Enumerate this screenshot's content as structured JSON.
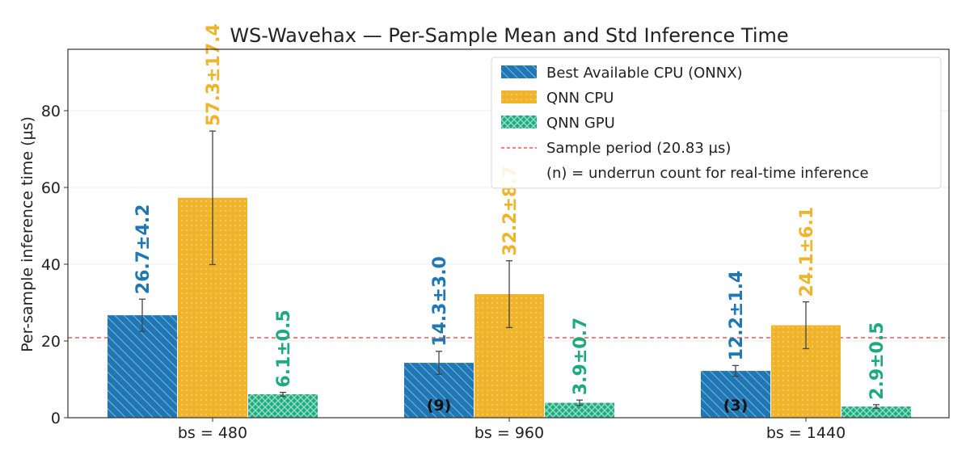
{
  "chart_data": {
    "type": "bar",
    "title": "WS-Wavehax — Per-Sample Mean and Std Inference Time",
    "xlabel": "",
    "ylabel": "Per-sample inference time (µs)",
    "ylim": [
      0,
      96
    ],
    "yticks": [
      0,
      20,
      40,
      60,
      80
    ],
    "grid": true,
    "legend_position": "top-right",
    "categories": [
      "bs = 480",
      "bs = 960",
      "bs = 1440"
    ],
    "series": [
      {
        "name": "Best Available CPU (ONNX)",
        "color": "#1f77b4",
        "pattern": "diagonal-hatch",
        "values": [
          26.7,
          14.3,
          12.2
        ],
        "std": [
          4.2,
          3.0,
          1.4
        ],
        "labels": [
          "26.7±4.2",
          "14.3±3.0",
          "12.2±1.4"
        ]
      },
      {
        "name": "QNN CPU",
        "color": "#f0b42b",
        "pattern": "dots",
        "values": [
          57.3,
          32.2,
          24.1
        ],
        "std": [
          17.4,
          8.7,
          6.1
        ],
        "labels": [
          "57.3±17.4",
          "32.2±8.7",
          "24.1±6.1"
        ]
      },
      {
        "name": "QNN GPU",
        "color": "#1daa7f",
        "pattern": "cross-hatch",
        "values": [
          6.1,
          3.9,
          2.9
        ],
        "std": [
          0.5,
          0.7,
          0.5
        ],
        "labels": [
          "6.1±0.5",
          "3.9±0.7",
          "2.9±0.5"
        ]
      }
    ],
    "reference_line": {
      "name": "Sample period (20.83 µs)",
      "value": 20.83,
      "color": "#ff5555",
      "style": "dashed"
    },
    "legend_note": "(n) = underrun count for real-time inference",
    "underrun_annotations": [
      {
        "category": "bs = 960",
        "series": "Best Available CPU (ONNX)",
        "text": "(9)"
      },
      {
        "category": "bs = 1440",
        "series": "Best Available CPU (ONNX)",
        "text": "(3)"
      }
    ]
  }
}
